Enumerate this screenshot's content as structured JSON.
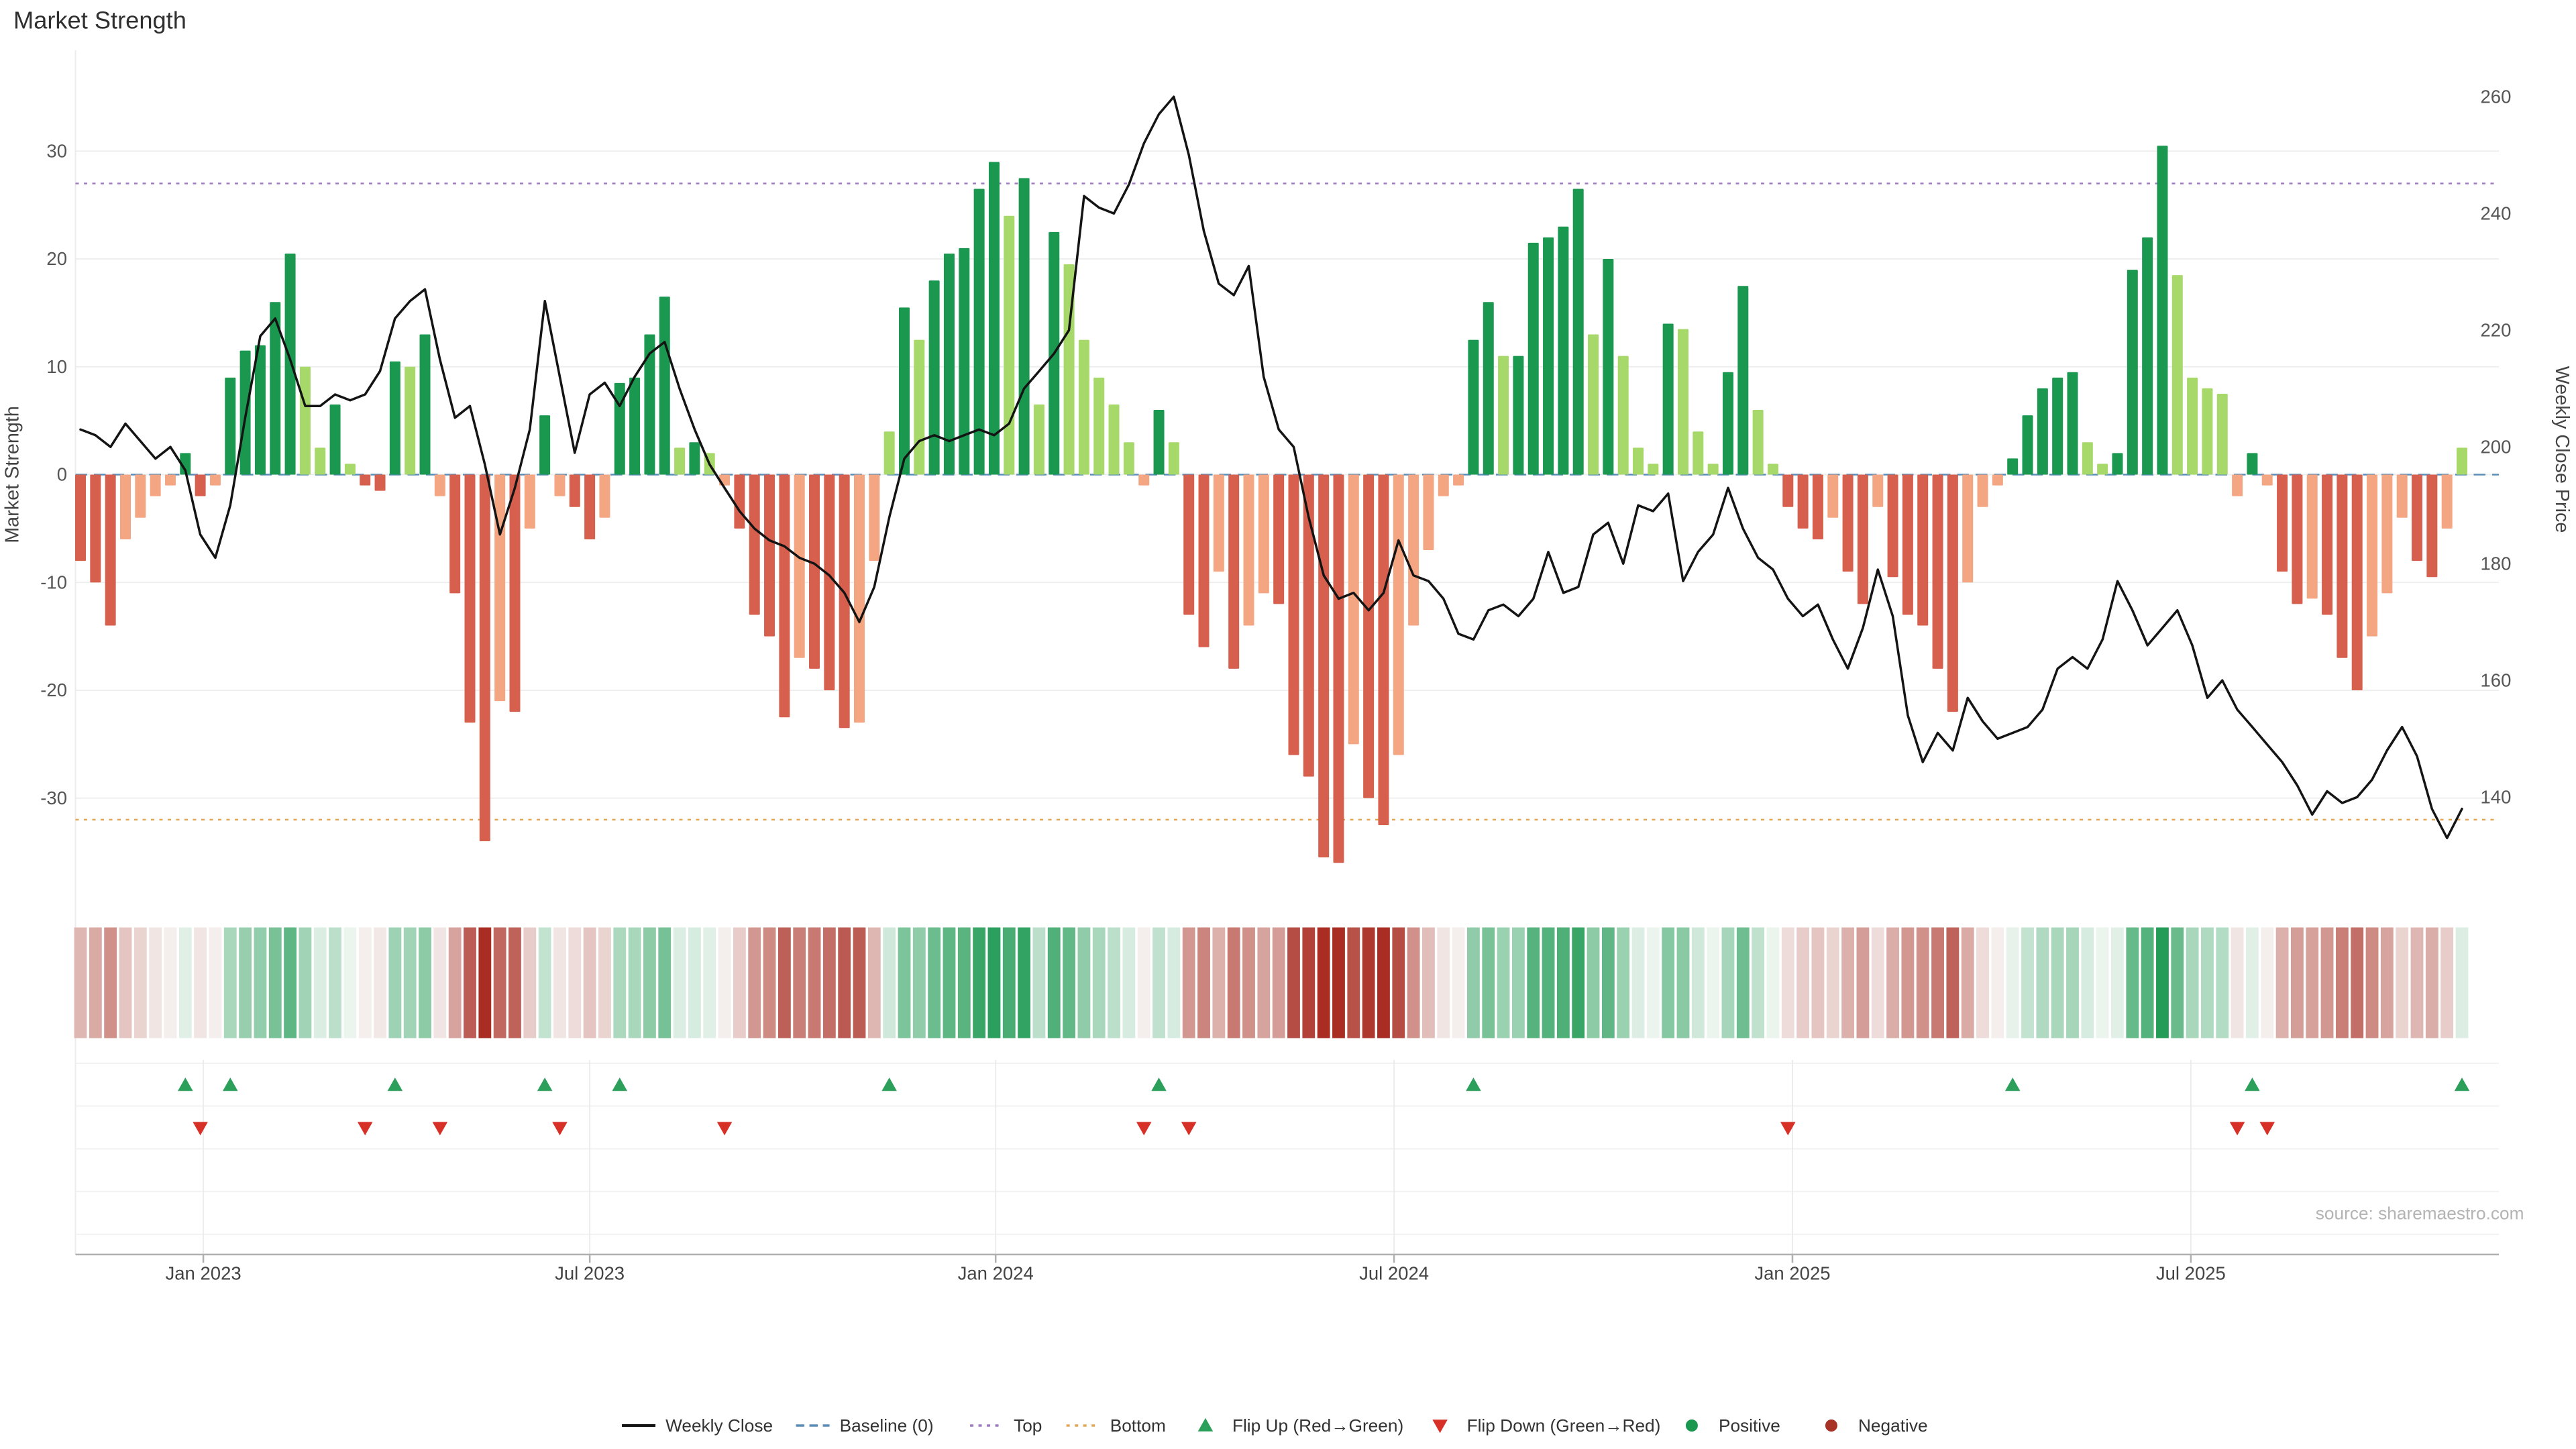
{
  "title": "Market Strength",
  "source": "source: sharemaestro.com",
  "axes": {
    "left_label": "Market Strength",
    "right_label": "Weekly Close Price",
    "left_ticks": [
      30,
      20,
      10,
      0,
      -10,
      -20,
      -30
    ],
    "right_ticks": [
      260,
      240,
      220,
      200,
      180,
      160,
      140
    ],
    "x_ticks": [
      "Jan 2023",
      "Jul 2023",
      "Jan 2024",
      "Jul 2024",
      "Jan 2025",
      "Jul 2025"
    ]
  },
  "colors": {
    "bar_pos_strong": "#1a9850",
    "bar_pos_light": "#a6d96a",
    "bar_neg_strong": "#d6604d",
    "bar_neg_light": "#f4a582",
    "line": "#141414",
    "baseline": "#5b8db8",
    "top": "#9e7cc1",
    "bottom": "#e3a857",
    "flip_up": "#2ca05a",
    "flip_down": "#d73027",
    "positive_dot": "#1a9850",
    "negative_dot": "#a93226"
  },
  "legend": {
    "items": [
      {
        "label": "Weekly Close",
        "style": "solid-line",
        "color": "#141414"
      },
      {
        "label": "Baseline (0)",
        "style": "dashed-line",
        "color": "#5b8db8"
      },
      {
        "label": "Top",
        "style": "dotted-line",
        "color": "#9e7cc1"
      },
      {
        "label": "Bottom",
        "style": "dotted-line",
        "color": "#e3a857"
      },
      {
        "label": "Flip Up (Red→Green)",
        "style": "triangle-up",
        "color": "#2ca05a"
      },
      {
        "label": "Flip Down (Green→Red)",
        "style": "triangle-down",
        "color": "#d73027"
      },
      {
        "label": "Positive",
        "style": "dot",
        "color": "#1a9850"
      },
      {
        "label": "Negative",
        "style": "dot",
        "color": "#a93226"
      }
    ]
  },
  "chart_data": {
    "type": "bar",
    "title": "Market Strength",
    "x_unit": "week",
    "weeks": 160,
    "x_axis": {
      "tick_labels": [
        "Jan 2023",
        "Jul 2023",
        "Jan 2024",
        "Jul 2024",
        "Jan 2025",
        "Jul 2025"
      ],
      "tick_weeks": [
        8.2,
        34,
        61.1,
        87.7,
        114.3,
        140.9
      ]
    },
    "left_axis": {
      "label": "Market Strength",
      "range": [
        -40,
        39
      ],
      "ticks": [
        30,
        20,
        10,
        0,
        -10,
        -20,
        -30
      ]
    },
    "right_axis": {
      "label": "Weekly Close Price",
      "range": [
        128,
        264
      ],
      "ticks": [
        260,
        240,
        220,
        200,
        180,
        160,
        140
      ]
    },
    "thresholds": {
      "baseline": 0,
      "top": 27,
      "bottom": -32
    },
    "series": [
      {
        "name": "Market Strength",
        "type": "bar",
        "axis": "left",
        "values": [
          -8,
          -10,
          -14,
          -6,
          -4,
          -2,
          -1,
          2,
          -2,
          -1,
          9,
          11.5,
          12,
          16,
          20.5,
          10,
          2.5,
          6.5,
          1,
          -1,
          -1.5,
          10.5,
          10,
          13,
          -2,
          -11,
          -23,
          -34,
          -21,
          -22,
          -5,
          5.5,
          -2,
          -3,
          -6,
          -4,
          8.5,
          9,
          13,
          16.5,
          2.5,
          3,
          2,
          -1,
          -5,
          -13,
          -15,
          -22.5,
          -17,
          -18,
          -20,
          -23.5,
          -23,
          -8,
          4,
          15.5,
          12.5,
          18,
          20.5,
          21,
          26.5,
          29,
          24,
          27.5,
          6.5,
          22.5,
          19.5,
          12.5,
          9,
          6.5,
          3,
          -1,
          6,
          3,
          -13,
          -16,
          -9,
          -18,
          -14,
          -11,
          -12,
          -26,
          -28,
          -35.5,
          -36,
          -25,
          -30,
          -32.5,
          -26,
          -14,
          -7,
          -2,
          -1,
          12.5,
          16,
          11,
          11,
          21.5,
          22,
          23,
          26.5,
          13,
          20,
          11,
          2.5,
          1,
          14,
          13.5,
          4,
          1,
          9.5,
          17.5,
          6,
          1,
          -3,
          -5,
          -6,
          -4,
          -9,
          -12,
          -3,
          -9.5,
          -13,
          -14,
          -18,
          -22,
          -10,
          -3,
          -1,
          1.5,
          5.5,
          8,
          9,
          9.5,
          3,
          1,
          2,
          19,
          22,
          30.5,
          18.5,
          9,
          8,
          7.5,
          -2,
          2,
          -1,
          -9,
          -12,
          -11.5,
          -13,
          -17,
          -20,
          -15,
          -11,
          -4,
          -8,
          -9.5,
          -5,
          2.5
        ]
      },
      {
        "name": "Weekly Close",
        "type": "line",
        "axis": "right",
        "values": [
          203,
          202,
          200,
          204,
          201,
          198,
          200,
          196,
          185,
          181,
          190,
          205,
          219,
          222,
          215,
          207,
          207,
          209,
          208,
          209,
          213,
          222,
          225,
          227,
          215,
          205,
          207,
          197,
          185,
          193,
          203,
          225,
          212,
          199,
          209,
          211,
          207,
          212,
          216,
          218,
          210,
          203,
          197,
          193,
          189,
          186,
          184,
          183,
          181,
          180,
          178,
          175,
          170,
          176,
          188,
          198,
          201,
          202,
          201,
          202,
          203,
          202,
          204,
          210,
          213,
          216,
          220,
          243,
          241,
          240,
          245,
          252,
          257,
          260,
          250,
          237,
          228,
          226,
          231,
          212,
          203,
          200,
          188,
          178,
          174,
          175,
          172,
          175,
          184,
          178,
          177,
          174,
          168,
          167,
          172,
          173,
          171,
          174,
          182,
          175,
          176,
          185,
          187,
          180,
          190,
          189,
          192,
          177,
          182,
          185,
          193,
          186,
          181,
          179,
          174,
          171,
          173,
          167,
          162,
          169,
          179,
          171,
          154,
          146,
          151,
          148,
          157,
          153,
          150,
          151,
          152,
          155,
          162,
          164,
          162,
          167,
          177,
          172,
          166,
          169,
          172,
          166,
          157,
          160,
          155,
          152,
          149,
          146,
          142,
          137,
          141,
          139,
          140,
          143,
          148,
          152,
          147,
          138,
          133,
          138
        ]
      }
    ],
    "flip_up_weeks": [
      7,
      10,
      21,
      31,
      36,
      54,
      72,
      93,
      129,
      145,
      159
    ],
    "flip_down_weeks": [
      8,
      19,
      24,
      32,
      43,
      71,
      74,
      114,
      144,
      146
    ],
    "heatmap_source": "Market Strength values, red-to-green diverging scale"
  }
}
